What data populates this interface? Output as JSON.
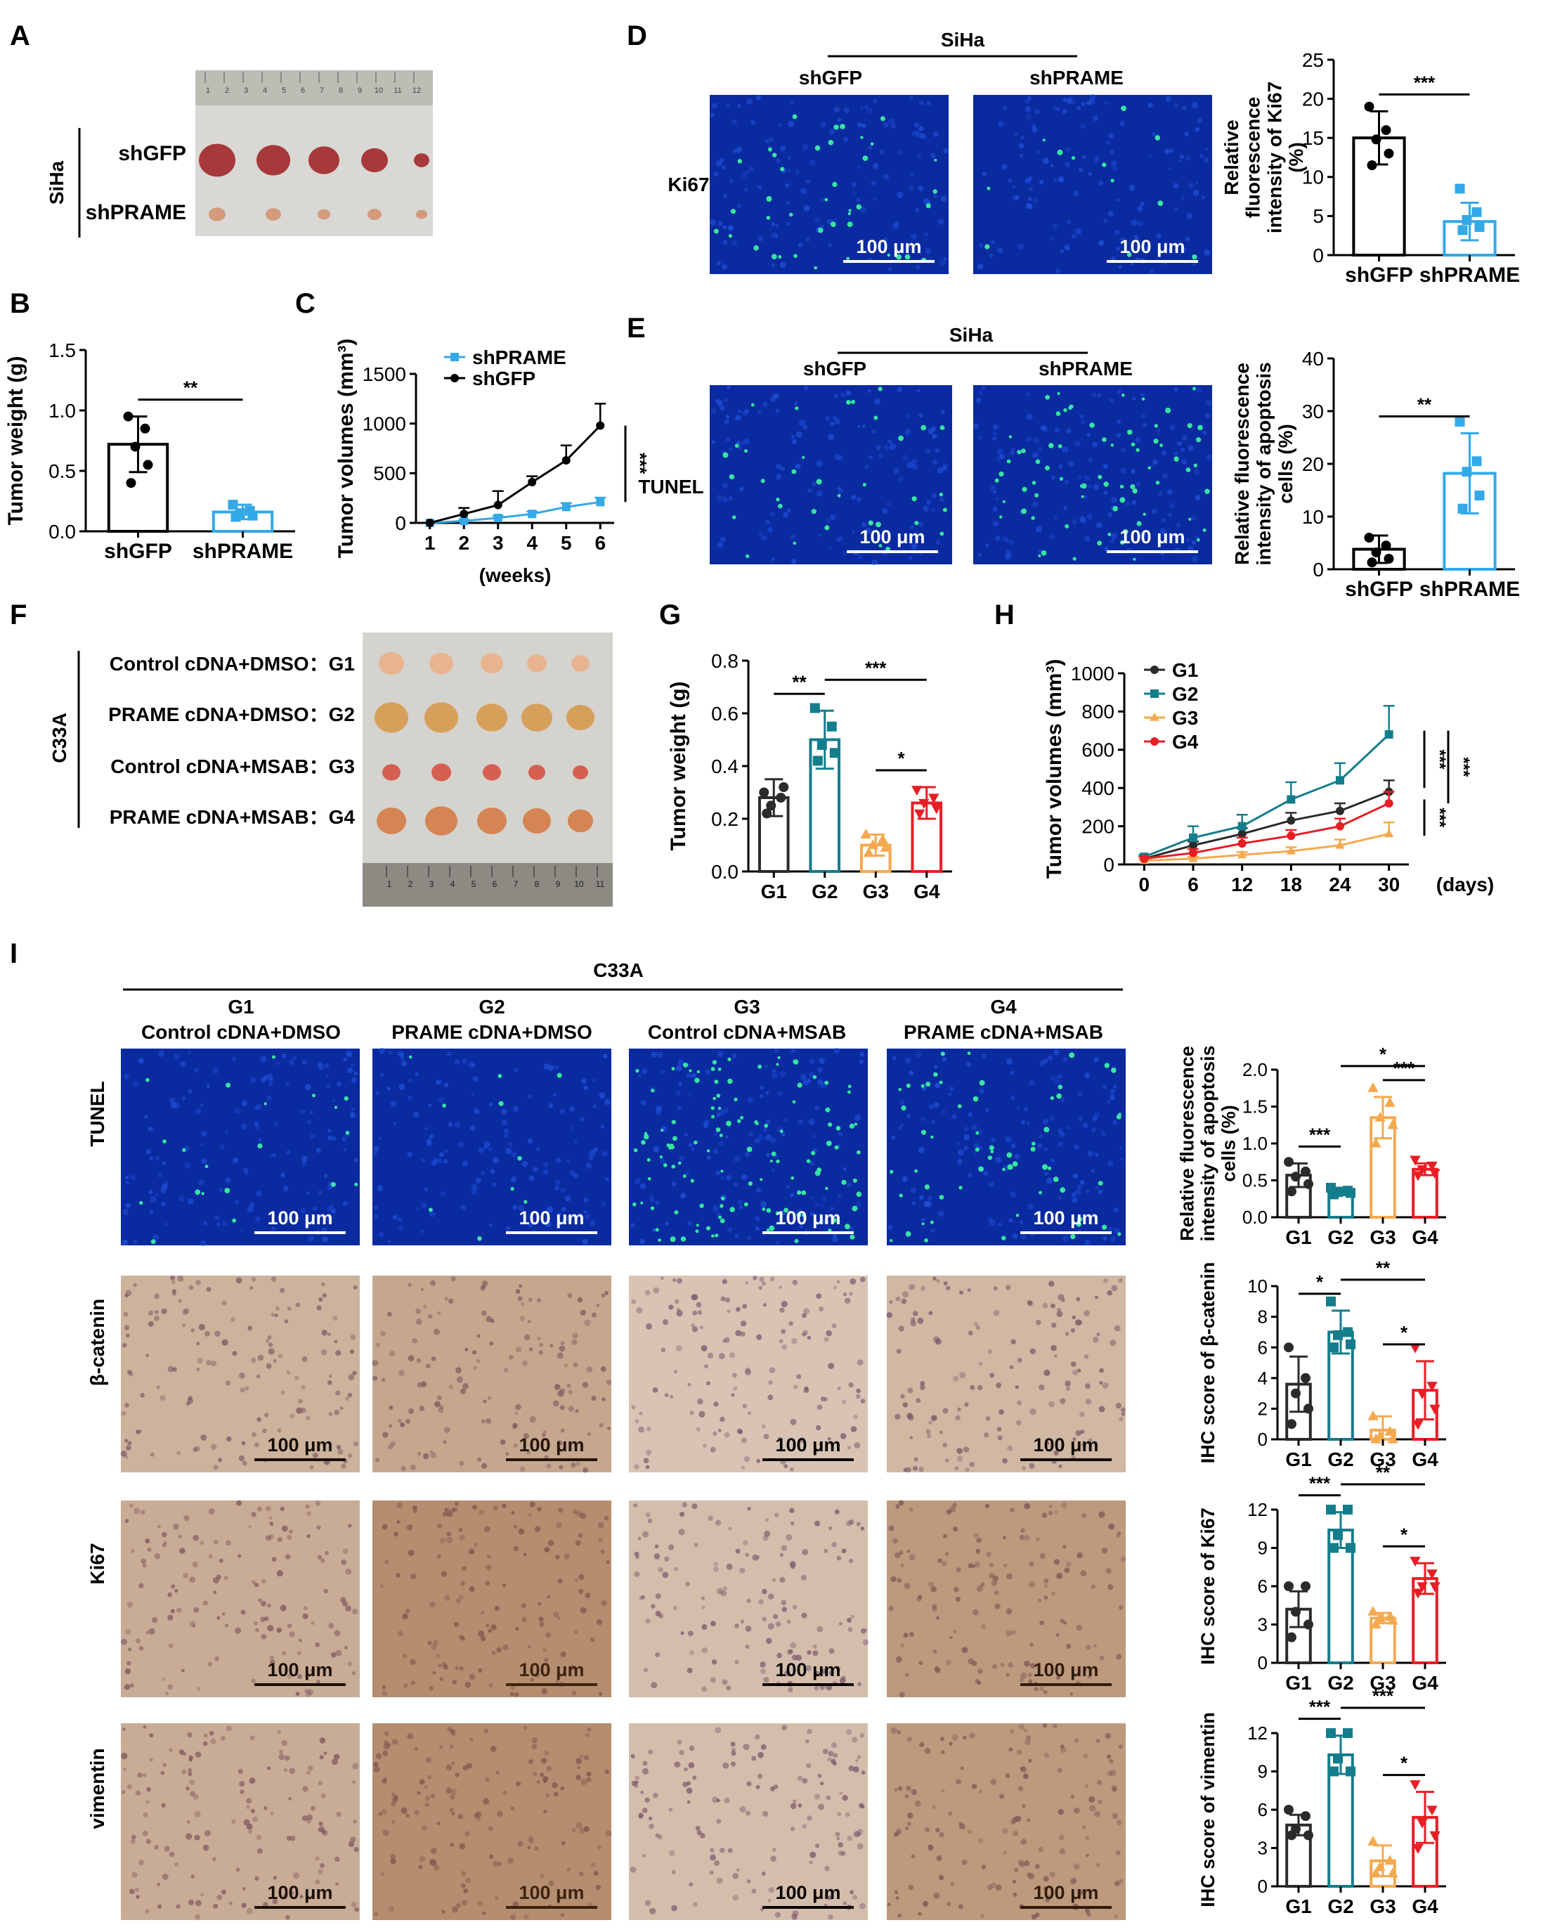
{
  "colors": {
    "black": "#000000",
    "blue": "#33a9e8",
    "teal": "#137d8c",
    "orange": "#f5a94e",
    "red": "#e81e25",
    "dark": "#2b2b2b",
    "fluor_bg": "#0a2aa0",
    "fluor_dot": "#1f4fd8",
    "fluor_green": "#36e6a0",
    "ihc_bg": "#d9c4b3",
    "ihc_dot": "#7b5a72"
  },
  "panel_letters": {
    "A": "A",
    "B": "B",
    "C": "C",
    "D": "D",
    "E": "E",
    "F": "F",
    "G": "G",
    "H": "H",
    "I": "I"
  },
  "panelA": {
    "side_label": "SiHa",
    "row_labels": [
      "shGFP",
      "shPRAME"
    ],
    "ruler_numbers": [
      "1",
      "2",
      "3",
      "4",
      "5",
      "6",
      "7",
      "8",
      "9",
      "10",
      "11",
      "12"
    ]
  },
  "panelD": {
    "header": "SiHa",
    "col_labels": [
      "shGFP",
      "shPRAME"
    ],
    "row_label": "Ki67",
    "scale_bar": "100 μm"
  },
  "panelE": {
    "header": "SiHa",
    "col_labels": [
      "shGFP",
      "shPRAME"
    ],
    "row_label": "TUNEL",
    "scale_bar": "100 μm"
  },
  "panelF": {
    "side_label": "C33A",
    "row_labels": [
      "Control cDNA+DMSO：G1",
      "PRAME cDNA+DMSO：G2",
      "Control cDNA+MSAB：G3",
      "PRAME cDNA+MSAB：G4"
    ],
    "ruler_numbers": [
      "1",
      "2",
      "3",
      "4",
      "5",
      "6",
      "7",
      "8",
      "9",
      "10",
      "11"
    ]
  },
  "panelI": {
    "header": "C33A",
    "col_groups": [
      "G1",
      "G2",
      "G3",
      "G4"
    ],
    "col_labels": [
      "Control cDNA+DMSO",
      "PRAME cDNA+DMSO",
      "Control cDNA+MSAB",
      "PRAME cDNA+MSAB"
    ],
    "row_labels": [
      "TUNEL",
      "β-catenin",
      "Ki67",
      "vimentin"
    ],
    "scale_bar": "100 μm"
  },
  "chart_data": [
    {
      "id": "B",
      "type": "bar",
      "ylabel": "Tumor weight (g)",
      "categories": [
        "shGFP",
        "shPRAME"
      ],
      "values": [
        0.72,
        0.16
      ],
      "errors": [
        0.23,
        0.06
      ],
      "points": [
        [
          0.95,
          0.85,
          0.7,
          0.55,
          0.4
        ],
        [
          0.22,
          0.17,
          0.15,
          0.13,
          0.12
        ]
      ],
      "ylim": [
        0,
        1.5
      ],
      "yticks": [
        "0.0",
        "0.5",
        "1.0",
        "1.5"
      ],
      "significance": [
        {
          "label": "**",
          "from": 0,
          "to": 1
        }
      ]
    },
    {
      "id": "C",
      "type": "line",
      "ylabel": "Tumor volumes (mm³)",
      "xlabel": "(weeks)",
      "x": [
        1,
        2,
        3,
        4,
        5,
        6
      ],
      "ylim": [
        0,
        1500
      ],
      "yticks": [
        "0",
        "500",
        "1000",
        "1500"
      ],
      "series": [
        {
          "name": "shPRAME",
          "values": [
            0,
            20,
            50,
            90,
            160,
            210
          ],
          "errors": [
            0,
            10,
            20,
            25,
            40,
            45
          ]
        },
        {
          "name": "shGFP",
          "values": [
            0,
            90,
            180,
            410,
            630,
            980
          ],
          "errors": [
            0,
            60,
            140,
            60,
            150,
            220
          ]
        }
      ],
      "significance": [
        {
          "label": "***"
        }
      ]
    },
    {
      "id": "D",
      "type": "bar",
      "ylabel": "Relative fluorescence intensity of Ki67 (%)",
      "categories": [
        "shGFP",
        "shPRAME"
      ],
      "values": [
        15.0,
        4.3
      ],
      "errors": [
        3.4,
        2.4
      ],
      "points": [
        [
          19.0,
          16.0,
          14.8,
          13.0,
          11.5
        ],
        [
          8.5,
          5.5,
          4.5,
          3.6,
          3.2
        ]
      ],
      "ylim": [
        0,
        25
      ],
      "yticks": [
        "0",
        "5",
        "10",
        "15",
        "20",
        "25"
      ],
      "significance": [
        {
          "label": "***",
          "from": 0,
          "to": 1
        }
      ]
    },
    {
      "id": "E",
      "type": "bar",
      "ylabel": "Relative fluorescence intensity of apoptosis cells (%)",
      "categories": [
        "shGFP",
        "shPRAME"
      ],
      "values": [
        3.8,
        18.2
      ],
      "errors": [
        2.6,
        7.6
      ],
      "points": [
        [
          6.0,
          4.5,
          3.2,
          2.0,
          1.3
        ],
        [
          28.0,
          20.5,
          18.5,
          14.0,
          11.5
        ]
      ],
      "ylim": [
        0,
        40
      ],
      "yticks": [
        "0",
        "10",
        "20",
        "30",
        "40"
      ],
      "significance": [
        {
          "label": "**",
          "from": 0,
          "to": 1
        }
      ]
    },
    {
      "id": "G",
      "type": "bar",
      "ylabel": "Tumor weight (g)",
      "categories": [
        "G1",
        "G2",
        "G3",
        "G4"
      ],
      "values": [
        0.28,
        0.5,
        0.1,
        0.26
      ],
      "errors": [
        0.07,
        0.11,
        0.04,
        0.06
      ],
      "points": [
        [
          0.3,
          0.28,
          0.25,
          0.32,
          0.22
        ],
        [
          0.62,
          0.55,
          0.48,
          0.45,
          0.42
        ],
        [
          0.14,
          0.12,
          0.1,
          0.09,
          0.07
        ],
        [
          0.31,
          0.28,
          0.26,
          0.24,
          0.22
        ]
      ],
      "ylim": [
        0,
        0.8
      ],
      "yticks": [
        "0.0",
        "0.2",
        "0.4",
        "0.6",
        "0.8"
      ],
      "significance": [
        {
          "label": "**",
          "from": 0,
          "to": 1
        },
        {
          "label": "***",
          "from": 1,
          "to": 3
        },
        {
          "label": "*",
          "from": 2,
          "to": 3
        }
      ]
    },
    {
      "id": "H",
      "type": "line",
      "ylabel": "Tumor volumes (mm³)",
      "xlabel": "(days)",
      "x": [
        0,
        6,
        12,
        18,
        24,
        30
      ],
      "ylim": [
        0,
        1000
      ],
      "yticks": [
        "0",
        "200",
        "400",
        "600",
        "800",
        "1000"
      ],
      "series": [
        {
          "name": "G1",
          "values": [
            30,
            100,
            160,
            230,
            280,
            380
          ],
          "errors": [
            10,
            20,
            30,
            40,
            40,
            60
          ]
        },
        {
          "name": "G2",
          "values": [
            40,
            140,
            200,
            340,
            440,
            680
          ],
          "errors": [
            10,
            60,
            60,
            90,
            90,
            150
          ]
        },
        {
          "name": "G3",
          "values": [
            20,
            30,
            50,
            70,
            100,
            160
          ],
          "errors": [
            5,
            10,
            15,
            20,
            30,
            60
          ]
        },
        {
          "name": "G4",
          "values": [
            30,
            60,
            110,
            150,
            200,
            320
          ],
          "errors": [
            10,
            20,
            30,
            30,
            40,
            60
          ]
        }
      ],
      "significance": [
        {
          "label": "***"
        },
        {
          "label": "***"
        },
        {
          "label": "***"
        }
      ]
    },
    {
      "id": "I1",
      "type": "bar",
      "ylabel": "Relative fluorescence intensity of apoptosis cells (%)",
      "categories": [
        "G1",
        "G2",
        "G3",
        "G4"
      ],
      "values": [
        0.57,
        0.35,
        1.35,
        0.65
      ],
      "errors": [
        0.16,
        0.05,
        0.28,
        0.08
      ],
      "points": [
        [
          0.75,
          0.62,
          0.55,
          0.45,
          0.35
        ],
        [
          0.4,
          0.36,
          0.34,
          0.33,
          0.31
        ],
        [
          1.75,
          1.55,
          1.35,
          1.25,
          1.0
        ],
        [
          0.78,
          0.7,
          0.65,
          0.6,
          0.57
        ]
      ],
      "ylim": [
        0,
        2.0
      ],
      "yticks": [
        "0.0",
        "0.5",
        "1.0",
        "1.5",
        "2.0"
      ],
      "significance": [
        {
          "label": "***",
          "from": 0,
          "to": 1
        },
        {
          "label": "*",
          "from": 1,
          "to": 3
        },
        {
          "label": "***",
          "from": 2,
          "to": 3
        }
      ]
    },
    {
      "id": "I2",
      "type": "bar",
      "ylabel": "IHC score of β-catenin",
      "categories": [
        "G1",
        "G2",
        "G3",
        "G4"
      ],
      "values": [
        3.6,
        7.0,
        0.6,
        3.2
      ],
      "errors": [
        1.8,
        1.4,
        0.9,
        1.9
      ],
      "points": [
        [
          6.0,
          4.0,
          3.0,
          2.0,
          1.0
        ],
        [
          9.0,
          7.0,
          6.8,
          6.2,
          6.0
        ],
        [
          1.5,
          0.5,
          0.2,
          0.0,
          0.0
        ],
        [
          6.0,
          3.5,
          3.0,
          2.0,
          1.0
        ]
      ],
      "ylim": [
        0,
        10
      ],
      "yticks": [
        "0",
        "2",
        "4",
        "6",
        "8",
        "10"
      ],
      "significance": [
        {
          "label": "*",
          "from": 0,
          "to": 1
        },
        {
          "label": "**",
          "from": 1,
          "to": 3
        },
        {
          "label": "*",
          "from": 2,
          "to": 3
        }
      ]
    },
    {
      "id": "I3",
      "type": "bar",
      "ylabel": "IHC score of Ki67",
      "categories": [
        "G1",
        "G2",
        "G3",
        "G4"
      ],
      "values": [
        4.2,
        10.4,
        3.5,
        6.6
      ],
      "errors": [
        1.4,
        1.4,
        0.4,
        1.2
      ],
      "points": [
        [
          6.0,
          6.0,
          4.0,
          3.0,
          2.0
        ],
        [
          12.0,
          12.0,
          10.0,
          9.0,
          9.0
        ],
        [
          4.0,
          3.6,
          3.5,
          3.3,
          3.0
        ],
        [
          8.0,
          7.0,
          6.0,
          6.0,
          5.5
        ]
      ],
      "ylim": [
        0,
        12
      ],
      "yticks": [
        "0",
        "3",
        "6",
        "9",
        "12"
      ],
      "significance": [
        {
          "label": "***",
          "from": 0,
          "to": 1
        },
        {
          "label": "**",
          "from": 1,
          "to": 3
        },
        {
          "label": "*",
          "from": 2,
          "to": 3
        }
      ]
    },
    {
      "id": "I4",
      "type": "bar",
      "ylabel": "IHC score of vimentin",
      "categories": [
        "G1",
        "G2",
        "G3",
        "G4"
      ],
      "values": [
        4.8,
        10.3,
        2.0,
        5.4
      ],
      "errors": [
        0.8,
        1.5,
        1.2,
        2.0
      ],
      "points": [
        [
          6.0,
          5.5,
          4.5,
          4.0,
          4.0
        ],
        [
          12.0,
          12.0,
          10.0,
          9.0,
          9.0
        ],
        [
          3.5,
          2.0,
          1.5,
          1.0,
          1.0
        ],
        [
          8.0,
          6.0,
          5.0,
          4.0,
          3.0
        ]
      ],
      "ylim": [
        0,
        12
      ],
      "yticks": [
        "0",
        "3",
        "6",
        "9",
        "12"
      ],
      "significance": [
        {
          "label": "***",
          "from": 0,
          "to": 1
        },
        {
          "label": "***",
          "from": 1,
          "to": 3
        },
        {
          "label": "*",
          "from": 2,
          "to": 3
        }
      ]
    }
  ]
}
